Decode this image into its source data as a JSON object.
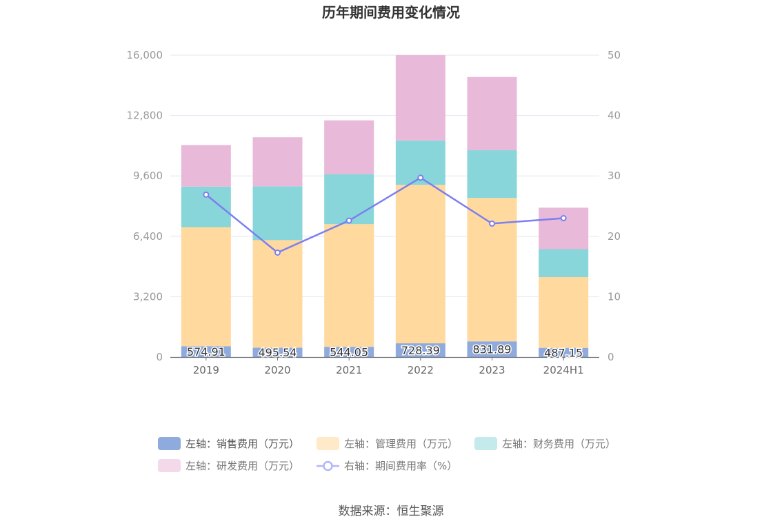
{
  "chart_data": {
    "type": "bar",
    "stacked": true,
    "title": "历年期间费用变化情况",
    "categories": [
      "2019",
      "2020",
      "2021",
      "2022",
      "2023",
      "2024H1"
    ],
    "series": [
      {
        "name": "左轴：销售费用（万元）",
        "axis": "left",
        "color": "#8faadc",
        "values": [
          574.91,
          495.54,
          544.05,
          728.39,
          831.89,
          487.15
        ],
        "labels": [
          "574.91",
          "495.54",
          "544.05",
          "728.39",
          "831.89",
          "487.15"
        ]
      },
      {
        "name": "左轴：管理费用（万元）",
        "axis": "left",
        "color": "#ffd99e",
        "values": [
          6310,
          5700,
          6500,
          8400,
          7600,
          3750
        ]
      },
      {
        "name": "左轴：财务费用（万元）",
        "axis": "left",
        "color": "#88d6da",
        "values": [
          2150,
          2850,
          2650,
          2350,
          2530,
          1480
        ]
      },
      {
        "name": "左轴：研发费用（万元）",
        "axis": "left",
        "color": "#e8b9d9",
        "values": [
          2200,
          2600,
          2850,
          4520,
          3880,
          2200
        ]
      },
      {
        "name": "右轴：期间费用率（%）",
        "axis": "right",
        "type": "line",
        "color": "#7b7ff0",
        "values": [
          26.9,
          17.3,
          22.6,
          29.7,
          22.1,
          23.0
        ]
      }
    ],
    "left_axis": {
      "min": 0,
      "max": 16000,
      "ticks": [
        "0",
        "3,200",
        "6,400",
        "9,600",
        "12,800",
        "16,000"
      ]
    },
    "right_axis": {
      "min": 0,
      "max": 50,
      "ticks": [
        "0",
        "10",
        "20",
        "30",
        "40",
        "50"
      ]
    },
    "legend_position": "bottom"
  },
  "legend": [
    {
      "label": "左轴：销售费用（万元）",
      "color": "#8faadc",
      "kind": "box"
    },
    {
      "label": "左轴：管理费用（万元）",
      "color": "#ffe9c8",
      "kind": "box"
    },
    {
      "label": "左轴：财务费用（万元）",
      "color": "#c4eaec",
      "kind": "box"
    },
    {
      "label": "左轴：研发费用（万元）",
      "color": "#f3d9ea",
      "kind": "box"
    },
    {
      "label": "右轴：期间费用率（%）",
      "color": "#b3b6f6",
      "kind": "line"
    }
  ],
  "source": "数据来源：恒生聚源"
}
